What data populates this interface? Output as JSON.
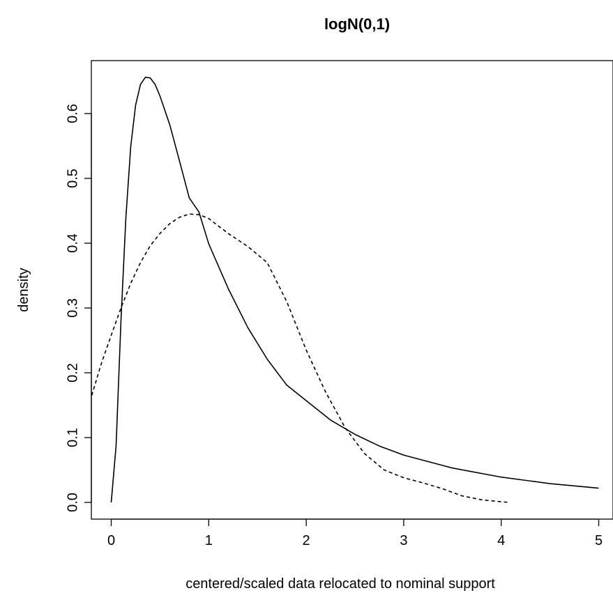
{
  "chart_data": {
    "type": "line",
    "title": "logN(0,1)",
    "xlabel": "centered/scaled data relocated to nominal support",
    "ylabel": "density",
    "xlim": [
      -0.2,
      5.15
    ],
    "ylim": [
      -0.025,
      0.68
    ],
    "x_ticks": [
      0,
      1,
      2,
      3,
      4,
      5
    ],
    "x_tick_labels": [
      "0",
      "1",
      "2",
      "3",
      "4",
      "5"
    ],
    "y_ticks": [
      0.0,
      0.1,
      0.2,
      0.3,
      0.4,
      0.5,
      0.6
    ],
    "y_tick_labels": [
      "0.0",
      "0.1",
      "0.2",
      "0.3",
      "0.4",
      "0.5",
      "0.6"
    ],
    "grid": false,
    "series": [
      {
        "style": "solid",
        "x": [
          0.0,
          0.05,
          0.1,
          0.15,
          0.2,
          0.25,
          0.3,
          0.35,
          0.4,
          0.45,
          0.5,
          0.6,
          0.7,
          0.8,
          0.9,
          1.0,
          1.2,
          1.4,
          1.6,
          1.8,
          2.0,
          2.25,
          2.5,
          2.75,
          3.0,
          3.5,
          4.0,
          4.5,
          5.0
        ],
        "y": [
          0.0,
          0.088,
          0.281,
          0.439,
          0.549,
          0.613,
          0.645,
          0.656,
          0.655,
          0.645,
          0.627,
          0.583,
          0.527,
          0.47,
          0.448,
          0.399,
          0.33,
          0.27,
          0.221,
          0.181,
          0.157,
          0.127,
          0.105,
          0.087,
          0.073,
          0.053,
          0.039,
          0.029,
          0.022
        ]
      },
      {
        "style": "dashed",
        "x": [
          -0.2,
          -0.1,
          0.0,
          0.1,
          0.2,
          0.3,
          0.4,
          0.5,
          0.6,
          0.7,
          0.8,
          0.9,
          1.0,
          1.2,
          1.4,
          1.6,
          1.8,
          2.0,
          2.2,
          2.4,
          2.6,
          2.8,
          3.0,
          3.2,
          3.4,
          3.6,
          3.8,
          4.0,
          4.08
        ],
        "y": [
          0.165,
          0.215,
          0.258,
          0.3,
          0.338,
          0.37,
          0.396,
          0.415,
          0.43,
          0.44,
          0.445,
          0.444,
          0.438,
          0.415,
          0.395,
          0.37,
          0.31,
          0.235,
          0.17,
          0.115,
          0.075,
          0.05,
          0.038,
          0.03,
          0.021,
          0.01,
          0.004,
          0.001,
          0.0
        ]
      }
    ]
  }
}
